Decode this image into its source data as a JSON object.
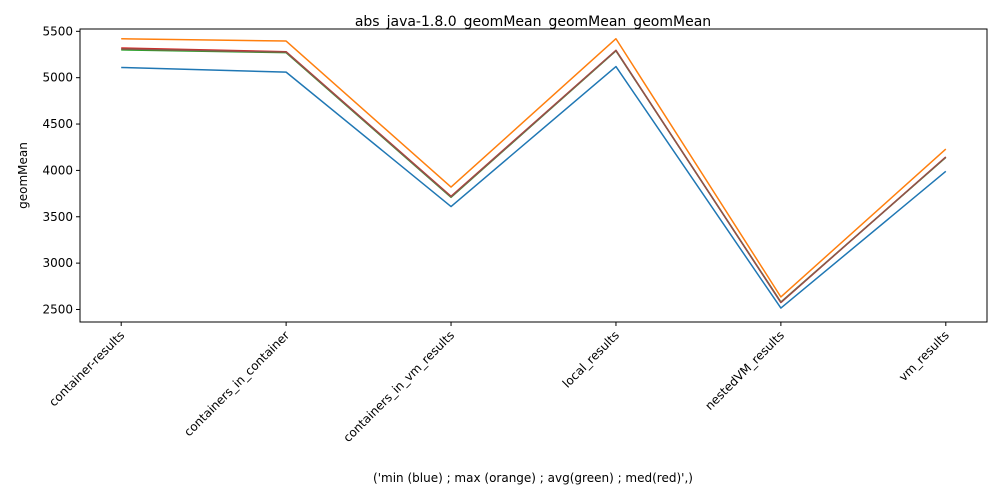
{
  "chart_data": {
    "type": "line",
    "title": "abs_java-1.8.0_geomMean_geomMean_geomMean",
    "xlabel": "('min (blue) ; max (orange) ; avg(green) ; med(red)',)",
    "ylabel": "geomMean",
    "categories": [
      "container-results",
      "containers_in_container",
      "containers_in_vm_results",
      "local_results",
      "nestedVM_results",
      "vm_results"
    ],
    "yticks": [
      2500,
      3000,
      3500,
      4000,
      4500,
      5000,
      5500
    ],
    "ylim": [
      2365,
      5525
    ],
    "grid": false,
    "series": [
      {
        "color": "#1f77b4",
        "values": [
          5110,
          5060,
          3610,
          5120,
          2515,
          3990
        ]
      },
      {
        "color": "#2ca02c",
        "values": [
          5300,
          5270,
          3710,
          5290,
          2580,
          4140
        ]
      },
      {
        "color": "#d62728",
        "values": [
          5320,
          5280,
          3720,
          5295,
          2575,
          4145
        ]
      },
      {
        "color": "#8c564b",
        "values": [
          5310,
          5275,
          3715,
          5292,
          2578,
          4142
        ]
      },
      {
        "color": "#ff7f0e",
        "values": [
          5420,
          5395,
          3820,
          5420,
          2635,
          4230
        ]
      }
    ]
  }
}
